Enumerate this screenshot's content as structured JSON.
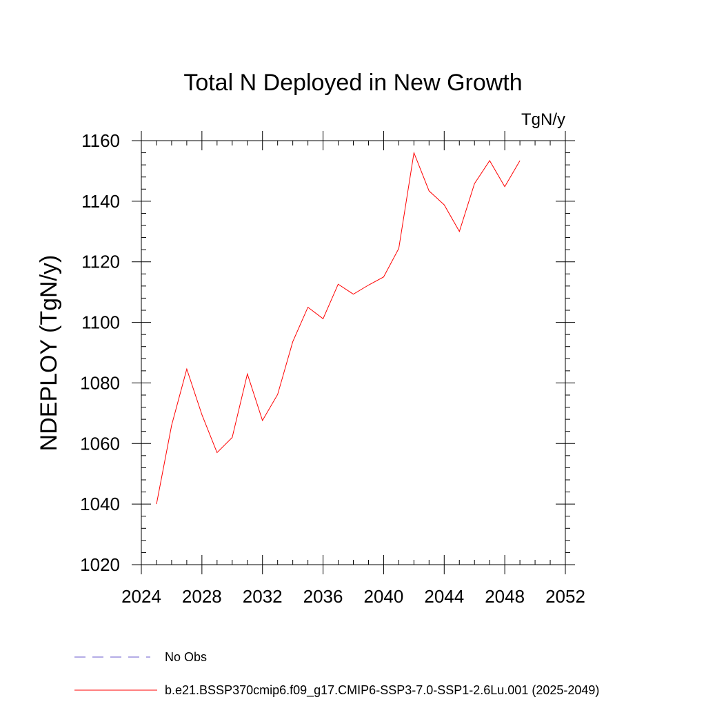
{
  "chart_data": {
    "type": "line",
    "title": "Total N Deployed in New Growth",
    "units_label": "TgN/y",
    "ylabel": "NDEPLOY  (TgN/y)",
    "xlabel": "",
    "xlim": [
      2024,
      2052
    ],
    "ylim": [
      1020,
      1160
    ],
    "x_major_ticks": [
      2024,
      2028,
      2032,
      2036,
      2040,
      2044,
      2048,
      2052
    ],
    "x_tick_labels": [
      "2024",
      "2028",
      "2032",
      "2036",
      "2040",
      "2044",
      "2048",
      "2052"
    ],
    "y_major_ticks": [
      1020,
      1040,
      1060,
      1080,
      1100,
      1120,
      1140,
      1160
    ],
    "y_tick_labels": [
      "1020",
      "1040",
      "1060",
      "1080",
      "1100",
      "1120",
      "1140",
      "1160"
    ],
    "grid": false,
    "legend_placement": "bottom-left",
    "series": [
      {
        "name": "b.e21.BSSP370cmip6.f09_g17.CMIP6-SSP3-7.0-SSP1-2.6Lu.001 (2025-2049)",
        "color": "#ff0000",
        "style": "solid",
        "x": [
          2025,
          2026,
          2027,
          2028,
          2029,
          2030,
          2031,
          2032,
          2033,
          2034,
          2035,
          2036,
          2037,
          2038,
          2039,
          2040,
          2041,
          2042,
          2043,
          2044,
          2045,
          2046,
          2047,
          2048,
          2049
        ],
        "y": [
          1040.0,
          1066.0,
          1084.6,
          1069.5,
          1057.0,
          1062.0,
          1083.0,
          1067.6,
          1076.2,
          1093.6,
          1105.0,
          1101.2,
          1112.6,
          1109.3,
          1112.3,
          1115.0,
          1124.4,
          1156.0,
          1143.4,
          1138.8,
          1130.0,
          1145.8,
          1153.4,
          1144.8,
          1153.4
        ]
      },
      {
        "name": "No Obs",
        "color": "#6a5acd",
        "style": "dashed",
        "x": [],
        "y": []
      }
    ]
  }
}
